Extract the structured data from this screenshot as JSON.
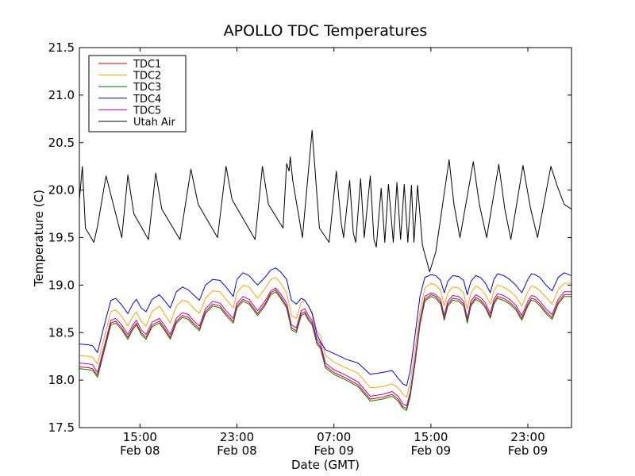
{
  "chart_data": {
    "type": "line",
    "title": "APOLLO TDC Temperatures",
    "xlabel": "Date (GMT)",
    "ylabel": "Temperature (C)",
    "xunit": "hours since Feb 08 10:00",
    "xlim": [
      0,
      40.6
    ],
    "ylim": [
      17.5,
      21.5
    ],
    "yticks": [
      17.5,
      18.0,
      18.5,
      19.0,
      19.5,
      20.0,
      20.5,
      21.0,
      21.5
    ],
    "ytick_labels": [
      "17.5",
      "18.0",
      "18.5",
      "19.0",
      "19.5",
      "20.0",
      "20.5",
      "21.0",
      "21.5"
    ],
    "xticks": [
      {
        "x": 5,
        "time": "15:00",
        "date": "Feb 08"
      },
      {
        "x": 13,
        "time": "23:00",
        "date": "Feb 08"
      },
      {
        "x": 21,
        "time": "07:00",
        "date": "Feb 09"
      },
      {
        "x": 29,
        "time": "15:00",
        "date": "Feb 09"
      },
      {
        "x": 37,
        "time": "23:00",
        "date": "Feb 09"
      }
    ],
    "legend_position": "top-left",
    "series": [
      {
        "name": "TDC1",
        "color": "#e00000",
        "x": [
          0,
          0.8,
          1.1,
          1.5,
          2.0,
          2.6,
          3.0,
          3.5,
          4.0,
          4.4,
          4.7,
          5.1,
          5.5,
          6.0,
          6.6,
          7.0,
          7.5,
          8.0,
          8.5,
          9.0,
          9.4,
          9.9,
          10.4,
          11.0,
          11.6,
          12.1,
          12.7,
          13.0,
          13.5,
          14.0,
          14.7,
          15.3,
          15.8,
          16.2,
          16.6,
          17.1,
          17.5,
          17.9,
          18.3,
          18.6,
          18.9,
          19.2,
          19.6,
          19.9,
          20.3,
          21.0,
          22.0,
          23.0,
          24.0,
          25.0,
          25.8,
          26.3,
          26.7,
          27.0,
          27.3,
          27.7,
          28.1,
          28.5,
          29.0,
          29.4,
          29.8,
          30.1,
          30.4,
          30.8,
          31.3,
          31.7,
          32.0,
          32.3,
          32.7,
          33.1,
          33.5,
          33.9,
          34.2,
          34.5,
          35.0,
          35.5,
          36.0,
          36.5,
          37.0,
          37.3,
          37.6,
          38.0,
          38.5,
          39.0,
          39.5,
          40.0,
          40.6
        ],
        "values": [
          18.14,
          18.13,
          18.12,
          18.05,
          18.3,
          18.6,
          18.62,
          18.55,
          18.45,
          18.55,
          18.6,
          18.5,
          18.45,
          18.58,
          18.62,
          18.55,
          18.45,
          18.62,
          18.68,
          18.66,
          18.6,
          18.54,
          18.72,
          18.8,
          18.78,
          18.7,
          18.62,
          18.78,
          18.85,
          18.82,
          18.7,
          18.8,
          18.92,
          18.95,
          18.88,
          18.78,
          18.55,
          18.52,
          18.7,
          18.72,
          18.65,
          18.6,
          18.4,
          18.35,
          18.15,
          18.08,
          18.02,
          17.95,
          17.8,
          17.82,
          17.85,
          17.8,
          17.72,
          17.7,
          17.85,
          18.2,
          18.6,
          18.85,
          18.9,
          18.88,
          18.82,
          18.65,
          18.8,
          18.86,
          18.85,
          18.8,
          18.62,
          18.8,
          18.87,
          18.84,
          18.78,
          18.67,
          18.82,
          18.88,
          18.86,
          18.82,
          18.76,
          18.65,
          18.8,
          18.86,
          18.85,
          18.8,
          18.72,
          18.66,
          18.82,
          18.9,
          18.9
        ]
      },
      {
        "name": "TDC2",
        "color": "#ffa500",
        "x": [
          0,
          0.8,
          1.1,
          1.5,
          2.0,
          2.6,
          3.0,
          3.5,
          4.0,
          4.4,
          4.7,
          5.1,
          5.5,
          6.0,
          6.6,
          7.0,
          7.5,
          8.0,
          8.5,
          9.0,
          9.4,
          9.9,
          10.4,
          11.0,
          11.6,
          12.1,
          12.7,
          13.0,
          13.5,
          14.0,
          14.7,
          15.3,
          15.8,
          16.2,
          16.6,
          17.1,
          17.5,
          17.9,
          18.3,
          18.6,
          18.9,
          19.2,
          19.6,
          19.9,
          20.3,
          21.0,
          22.0,
          23.0,
          24.0,
          25.0,
          25.8,
          26.3,
          26.7,
          27.0,
          27.3,
          27.7,
          28.1,
          28.5,
          29.0,
          29.4,
          29.8,
          30.1,
          30.4,
          30.8,
          31.3,
          31.7,
          32.0,
          32.3,
          32.7,
          33.1,
          33.5,
          33.9,
          34.2,
          34.5,
          35.0,
          35.5,
          36.0,
          36.5,
          37.0,
          37.3,
          37.6,
          38.0,
          38.5,
          39.0,
          39.5,
          40.0,
          40.6
        ],
        "values": [
          18.26,
          18.25,
          18.24,
          18.17,
          18.42,
          18.72,
          18.74,
          18.67,
          18.57,
          18.67,
          18.72,
          18.62,
          18.57,
          18.72,
          18.78,
          18.7,
          18.6,
          18.78,
          18.84,
          18.82,
          18.76,
          18.7,
          18.86,
          18.94,
          18.93,
          18.85,
          18.76,
          18.92,
          19.0,
          18.98,
          18.86,
          18.96,
          19.06,
          19.08,
          19.02,
          18.92,
          18.68,
          18.65,
          18.82,
          18.84,
          18.78,
          18.72,
          18.52,
          18.46,
          18.26,
          18.19,
          18.13,
          18.07,
          17.92,
          17.93,
          17.96,
          17.92,
          17.85,
          17.82,
          17.98,
          18.33,
          18.72,
          18.97,
          19.02,
          19.0,
          18.95,
          18.78,
          18.92,
          18.98,
          18.97,
          18.92,
          18.75,
          18.92,
          18.99,
          18.96,
          18.9,
          18.8,
          18.94,
          19.0,
          18.98,
          18.94,
          18.88,
          18.78,
          18.93,
          18.99,
          18.98,
          18.94,
          18.87,
          18.8,
          18.95,
          19.02,
          19.02
        ]
      },
      {
        "name": "TDC3",
        "color": "#008000",
        "x": [
          0,
          0.8,
          1.1,
          1.5,
          2.0,
          2.6,
          3.0,
          3.5,
          4.0,
          4.4,
          4.7,
          5.1,
          5.5,
          6.0,
          6.6,
          7.0,
          7.5,
          8.0,
          8.5,
          9.0,
          9.4,
          9.9,
          10.4,
          11.0,
          11.6,
          12.1,
          12.7,
          13.0,
          13.5,
          14.0,
          14.7,
          15.3,
          15.8,
          16.2,
          16.6,
          17.1,
          17.5,
          17.9,
          18.3,
          18.6,
          18.9,
          19.2,
          19.6,
          19.9,
          20.3,
          21.0,
          22.0,
          23.0,
          24.0,
          25.0,
          25.8,
          26.3,
          26.7,
          27.0,
          27.3,
          27.7,
          28.1,
          28.5,
          29.0,
          29.4,
          29.8,
          30.1,
          30.4,
          30.8,
          31.3,
          31.7,
          32.0,
          32.3,
          32.7,
          33.1,
          33.5,
          33.9,
          34.2,
          34.5,
          35.0,
          35.5,
          36.0,
          36.5,
          37.0,
          37.3,
          37.6,
          38.0,
          38.5,
          39.0,
          39.5,
          40.0,
          40.6
        ],
        "values": [
          18.12,
          18.11,
          18.1,
          18.03,
          18.28,
          18.58,
          18.6,
          18.53,
          18.43,
          18.53,
          18.58,
          18.48,
          18.43,
          18.56,
          18.6,
          18.53,
          18.43,
          18.6,
          18.66,
          18.64,
          18.58,
          18.52,
          18.7,
          18.78,
          18.76,
          18.68,
          18.6,
          18.76,
          18.83,
          18.8,
          18.68,
          18.78,
          18.9,
          18.93,
          18.86,
          18.76,
          18.53,
          18.5,
          18.68,
          18.7,
          18.63,
          18.58,
          18.38,
          18.33,
          18.13,
          18.06,
          18.0,
          17.93,
          17.78,
          17.8,
          17.83,
          17.78,
          17.7,
          17.68,
          17.83,
          18.18,
          18.58,
          18.83,
          18.88,
          18.86,
          18.8,
          18.63,
          18.78,
          18.84,
          18.83,
          18.78,
          18.6,
          18.78,
          18.85,
          18.82,
          18.76,
          18.65,
          18.8,
          18.86,
          18.84,
          18.8,
          18.74,
          18.63,
          18.78,
          18.84,
          18.83,
          18.78,
          18.7,
          18.64,
          18.8,
          18.88,
          18.88
        ]
      },
      {
        "name": "TDC4",
        "color": "#0000ff",
        "x": [
          0,
          0.8,
          1.1,
          1.5,
          2.0,
          2.6,
          3.0,
          3.5,
          4.0,
          4.4,
          4.7,
          5.1,
          5.5,
          6.0,
          6.6,
          7.0,
          7.5,
          8.0,
          8.5,
          9.0,
          9.4,
          9.9,
          10.4,
          11.0,
          11.6,
          12.1,
          12.7,
          13.0,
          13.5,
          14.0,
          14.7,
          15.3,
          15.8,
          16.2,
          16.6,
          17.1,
          17.5,
          17.9,
          18.3,
          18.6,
          18.9,
          19.2,
          19.6,
          19.9,
          20.3,
          21.0,
          22.0,
          23.0,
          24.0,
          25.0,
          25.8,
          26.3,
          26.7,
          27.0,
          27.3,
          27.7,
          28.1,
          28.5,
          29.0,
          29.4,
          29.8,
          30.1,
          30.4,
          30.8,
          31.3,
          31.7,
          32.0,
          32.3,
          32.7,
          33.1,
          33.5,
          33.9,
          34.2,
          34.5,
          35.0,
          35.5,
          36.0,
          36.5,
          37.0,
          37.3,
          37.6,
          38.0,
          38.5,
          39.0,
          39.5,
          40.0,
          40.6
        ],
        "values": [
          18.38,
          18.37,
          18.36,
          18.29,
          18.55,
          18.84,
          18.86,
          18.79,
          18.7,
          18.8,
          18.85,
          18.76,
          18.72,
          18.85,
          18.9,
          18.84,
          18.76,
          18.93,
          18.98,
          18.95,
          18.9,
          18.84,
          19.0,
          19.06,
          19.05,
          18.98,
          18.88,
          19.06,
          19.13,
          19.1,
          19.0,
          19.08,
          19.16,
          19.18,
          19.14,
          19.06,
          18.84,
          18.8,
          18.86,
          18.84,
          18.78,
          18.7,
          18.48,
          18.4,
          18.32,
          18.28,
          18.22,
          18.18,
          18.06,
          18.08,
          18.1,
          18.02,
          17.96,
          17.94,
          18.1,
          18.48,
          18.88,
          19.08,
          19.11,
          19.1,
          19.05,
          18.92,
          19.04,
          19.1,
          19.09,
          19.05,
          18.9,
          19.04,
          19.1,
          19.08,
          19.02,
          18.92,
          19.06,
          19.12,
          19.1,
          19.06,
          19.0,
          18.92,
          19.06,
          19.12,
          19.11,
          19.08,
          19.0,
          18.94,
          19.08,
          19.13,
          19.1
        ]
      },
      {
        "name": "TDC5",
        "color": "#bf00bf",
        "x": [
          0,
          0.8,
          1.1,
          1.5,
          2.0,
          2.6,
          3.0,
          3.5,
          4.0,
          4.4,
          4.7,
          5.1,
          5.5,
          6.0,
          6.6,
          7.0,
          7.5,
          8.0,
          8.5,
          9.0,
          9.4,
          9.9,
          10.4,
          11.0,
          11.6,
          12.1,
          12.7,
          13.0,
          13.5,
          14.0,
          14.7,
          15.3,
          15.8,
          16.2,
          16.6,
          17.1,
          17.5,
          17.9,
          18.3,
          18.6,
          18.9,
          19.2,
          19.6,
          19.9,
          20.3,
          21.0,
          22.0,
          23.0,
          24.0,
          25.0,
          25.8,
          26.3,
          26.7,
          27.0,
          27.3,
          27.7,
          28.1,
          28.5,
          29.0,
          29.4,
          29.8,
          30.1,
          30.4,
          30.8,
          31.3,
          31.7,
          32.0,
          32.3,
          32.7,
          33.1,
          33.5,
          33.9,
          34.2,
          34.5,
          35.0,
          35.5,
          36.0,
          36.5,
          37.0,
          37.3,
          37.6,
          38.0,
          38.5,
          39.0,
          39.5,
          40.0,
          40.6
        ],
        "values": [
          18.18,
          18.17,
          18.16,
          18.08,
          18.33,
          18.63,
          18.65,
          18.58,
          18.48,
          18.58,
          18.63,
          18.53,
          18.48,
          18.61,
          18.65,
          18.58,
          18.48,
          18.65,
          18.71,
          18.69,
          18.63,
          18.57,
          18.75,
          18.83,
          18.81,
          18.73,
          18.65,
          18.81,
          18.88,
          18.85,
          18.73,
          18.83,
          18.94,
          18.97,
          18.91,
          18.81,
          18.58,
          18.55,
          18.73,
          18.75,
          18.68,
          18.63,
          18.43,
          18.38,
          18.18,
          18.11,
          18.05,
          17.98,
          17.83,
          17.85,
          17.88,
          17.83,
          17.75,
          17.73,
          17.88,
          18.23,
          18.63,
          18.88,
          18.92,
          18.9,
          18.85,
          18.68,
          18.83,
          18.89,
          18.88,
          18.83,
          18.65,
          18.83,
          18.9,
          18.87,
          18.81,
          18.7,
          18.85,
          18.91,
          18.89,
          18.85,
          18.79,
          18.68,
          18.83,
          18.89,
          18.88,
          18.83,
          18.75,
          18.69,
          18.85,
          18.93,
          18.93
        ]
      },
      {
        "name": "Utah Air",
        "color": "#000000",
        "x": [
          0,
          0.25,
          0.5,
          1.2,
          1.5,
          1.8,
          2.2,
          3.5,
          4.0,
          4.5,
          5.7,
          6.3,
          6.8,
          8.3,
          9.2,
          9.8,
          11.4,
          12.1,
          12.6,
          14.5,
          15.1,
          15.6,
          16.8,
          17.1,
          17.3,
          17.4,
          17.6,
          18.4,
          19.2,
          19.8,
          20.6,
          21.2,
          21.6,
          21.8,
          22.3,
          22.6,
          22.8,
          23.2,
          23.5,
          24.0,
          24.3,
          24.5,
          24.9,
          25.2,
          25.5,
          25.9,
          26.2,
          26.5,
          26.8,
          27.1,
          27.4,
          27.6,
          27.9,
          28.3,
          28.9,
          29.4,
          30.5,
          30.9,
          31.4,
          32.5,
          33.0,
          33.6,
          34.6,
          35.1,
          35.6,
          36.6,
          37.2,
          37.8,
          38.9,
          39.4,
          40.0,
          40.6
        ],
        "values": [
          19.9,
          20.25,
          19.6,
          19.45,
          19.62,
          19.85,
          20.15,
          19.5,
          20.16,
          19.75,
          19.48,
          20.18,
          19.8,
          19.48,
          20.22,
          19.85,
          19.5,
          20.25,
          19.9,
          19.48,
          20.25,
          19.85,
          19.6,
          20.28,
          20.2,
          20.35,
          20.1,
          19.5,
          20.63,
          19.6,
          19.45,
          20.2,
          19.65,
          19.5,
          20.1,
          19.55,
          19.45,
          20.12,
          19.5,
          20.15,
          19.48,
          19.4,
          20.02,
          19.45,
          20.06,
          19.45,
          20.08,
          19.48,
          20.06,
          19.45,
          20.05,
          19.45,
          20.05,
          19.42,
          19.14,
          19.35,
          20.32,
          19.85,
          19.5,
          20.3,
          19.85,
          19.5,
          20.27,
          19.8,
          19.48,
          20.26,
          19.82,
          19.5,
          20.25,
          20.05,
          19.85,
          19.8
        ]
      }
    ]
  }
}
